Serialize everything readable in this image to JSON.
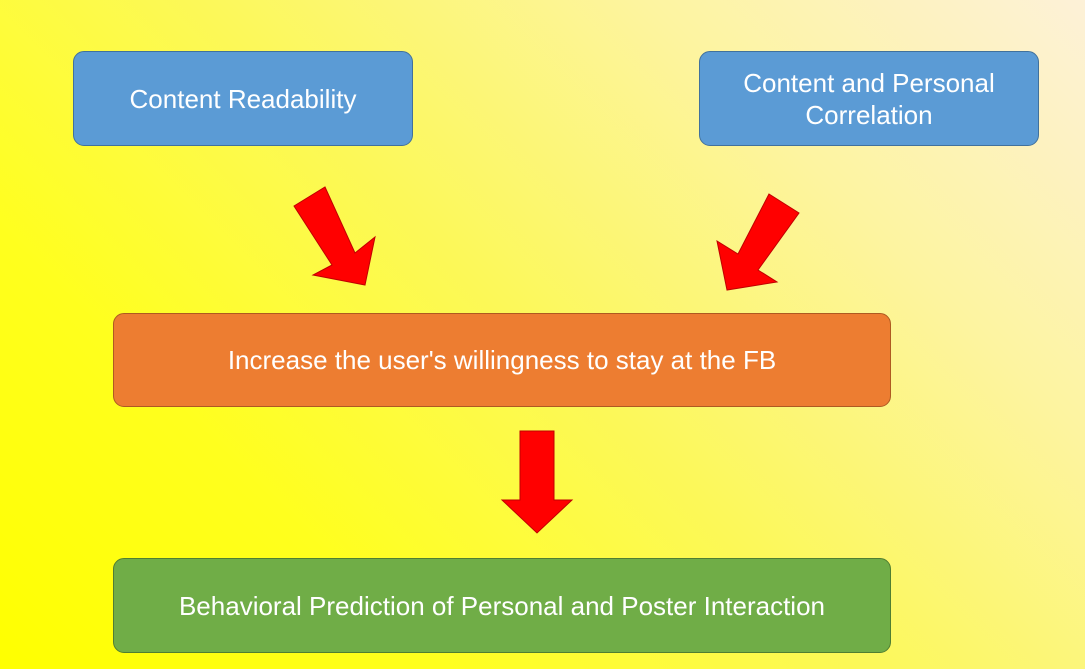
{
  "diagram": {
    "nodes": {
      "content_readability": "Content Readability",
      "content_personal_correlation": "Content and Personal Correlation",
      "increase_willingness": "Increase the user's willingness to stay at the FB",
      "behavioral_prediction": "Behavioral Prediction of Personal and Poster Interaction"
    },
    "edges": [
      {
        "from": "content_readability",
        "to": "increase_willingness"
      },
      {
        "from": "content_personal_correlation",
        "to": "increase_willingness"
      },
      {
        "from": "increase_willingness",
        "to": "behavioral_prediction"
      }
    ],
    "colors": {
      "input_box": "#5b9bd5",
      "middle_box": "#ed7d31",
      "output_box": "#70ad47",
      "arrow": "#ff0000"
    }
  }
}
